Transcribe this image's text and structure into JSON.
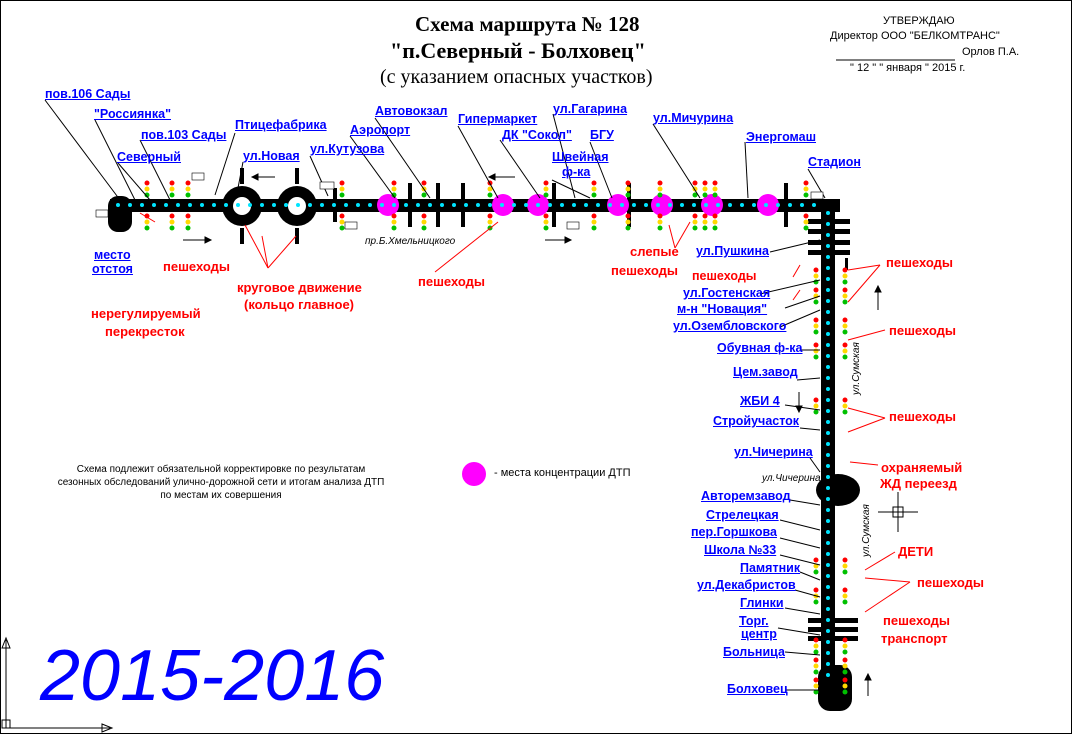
{
  "header": {
    "title_line1": "Схема маршрута № 128",
    "title_line2": "\"п.Северный - Болховец\"",
    "title_line3": "(с указанием опасных участков)"
  },
  "approval": {
    "line1": "УТВЕРЖДАЮ",
    "line2": "Директор ООО \"БЕЛКОМТРАНС\"",
    "signer": "Орлов П.А.",
    "date": "\" 12 \" \" января \" 2015 г."
  },
  "stops_top": [
    {
      "label": "пов.106 Сады"
    },
    {
      "label": "\"Россиянка\""
    },
    {
      "label": "пов.103 Сады"
    },
    {
      "label": "Северный"
    },
    {
      "label": "Птицефабрика"
    },
    {
      "label": "ул.Новая"
    },
    {
      "label": "ул.Кутузова"
    },
    {
      "label": "Аэропорт"
    },
    {
      "label": "Автовокзал"
    },
    {
      "label": "Гипермаркет"
    },
    {
      "label": "ДК \"Сокол\""
    },
    {
      "label": "ул.Гагарина"
    },
    {
      "label": "БГУ"
    },
    {
      "label": "Швейная"
    },
    {
      "label": "ф-ка"
    },
    {
      "label": "ул.Мичурина"
    },
    {
      "label": "Энергомаш"
    },
    {
      "label": "Стадион"
    }
  ],
  "stops_right": [
    {
      "label": "ул.Пушкина"
    },
    {
      "label": "пешеходы"
    },
    {
      "label": "ул.Гостенская"
    },
    {
      "label": "м-н \"Новация\""
    },
    {
      "label": "ул.Озембловского"
    },
    {
      "label": "Обувная ф-ка"
    },
    {
      "label": "Цем.завод"
    },
    {
      "label": "ЖБИ 4"
    },
    {
      "label": "Стройучасток"
    },
    {
      "label": "ул.Чичерина"
    },
    {
      "label": "Авторемзавод"
    },
    {
      "label": "Стрелецкая"
    },
    {
      "label": "пер.Горшкова"
    },
    {
      "label": "Школа №33"
    },
    {
      "label": "Памятник"
    },
    {
      "label": "ул.Декабристов"
    },
    {
      "label": "Глинки"
    },
    {
      "label": "Торг."
    },
    {
      "label": "центр"
    },
    {
      "label": "Больница"
    },
    {
      "label": "Болховец"
    }
  ],
  "left_labels": {
    "depot_line1": "место",
    "depot_line2": "отстоя"
  },
  "hazards": {
    "pedestrians": "пешеходы",
    "unregulated_line1": "нерегулируемый",
    "unregulated_line2": "перекресток",
    "roundabout_line1": "круговое движение",
    "roundabout_line2": "(кольцо главное)",
    "blind_line1": "слепые",
    "blind_line2": "пешеходы",
    "guarded_line1": "охраняемый",
    "guarded_line2": "ЖД переезд",
    "children": "ДЕТИ",
    "transport": "транспорт"
  },
  "street_labels": {
    "khmelnitsky": "пр.Б.Хмельницкого",
    "sumskaya": "ул.Сумская",
    "chicherina": "ул.Чичерина"
  },
  "legend": {
    "text": "- места концентрации ДТП",
    "color": "#ff00ff"
  },
  "note": "Схема подлежит обязательной корректировке по результатам сезонных обследований улично-дорожной сети и итогам анализа ДТП по местам их совершения",
  "year_label": "2015-2016",
  "colors": {
    "road": "#000000",
    "stop_dot": "#00e5ff",
    "stop_label": "#0000ff",
    "hazard": "#ff0000",
    "accident": "#ff00ff",
    "light_red": "#ff0000",
    "light_yellow": "#ffd800",
    "light_green": "#00c000"
  }
}
